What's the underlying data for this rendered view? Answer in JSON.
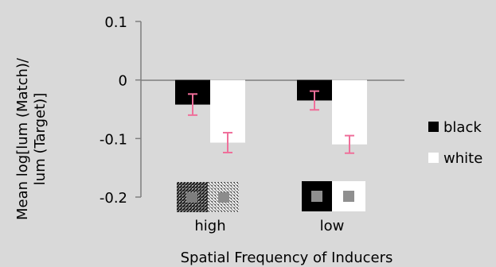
{
  "chart_data": {
    "type": "bar",
    "title": "",
    "xlabel": "Spatial Frequency of Inducers",
    "ylabel_lines": [
      "Mean log[lum (Match)/",
      "lum (Target)]"
    ],
    "categories": [
      "high",
      "low"
    ],
    "ylim": [
      -0.2,
      0.1
    ],
    "yticks": [
      0.1,
      0,
      -0.1,
      -0.2
    ],
    "ytick_labels": [
      "0.1",
      "0",
      "-0.1",
      "-0.2"
    ],
    "series": [
      {
        "name": "black",
        "color": "#000000",
        "values": [
          -0.042,
          -0.035
        ],
        "error": [
          0.018,
          0.016
        ]
      },
      {
        "name": "white",
        "color": "#ffffff",
        "values": [
          -0.107,
          -0.11
        ],
        "error": [
          0.017,
          0.015
        ]
      }
    ],
    "error_bar_color": "#ef6f9a",
    "legend_position": "right",
    "grid": false,
    "inducer_icons": [
      {
        "category": "high",
        "description": "high-frequency texture patches"
      },
      {
        "category": "low",
        "description": "black and white squares with gray centers"
      }
    ]
  }
}
